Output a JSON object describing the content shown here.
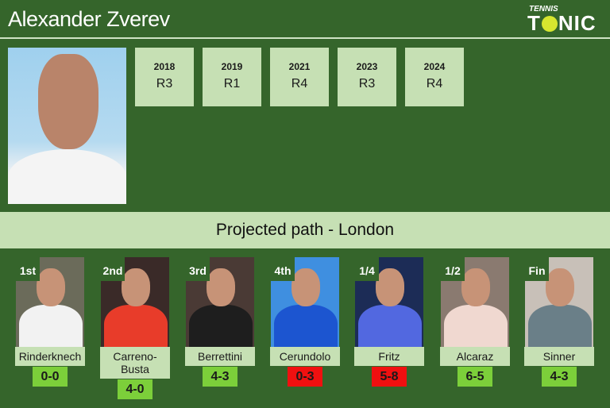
{
  "header": {
    "title": "Alexander Zverev",
    "logo_top": "TENNIS",
    "logo_main": "TONIC"
  },
  "history": [
    {
      "year": "2018",
      "result": "R3"
    },
    {
      "year": "2019",
      "result": "R1"
    },
    {
      "year": "2021",
      "result": "R4"
    },
    {
      "year": "2023",
      "result": "R3"
    },
    {
      "year": "2024",
      "result": "R4"
    }
  ],
  "banner": "Projected path - London",
  "colors": {
    "background": "#35652b",
    "panel": "#c6e0b4",
    "win": "#7ccf3a",
    "loss": "#f01010"
  },
  "path": [
    {
      "round": "1st",
      "name": "Rinderknech",
      "score": "0-0",
      "status": "win",
      "photo_bg": "#6b6b5a",
      "shirt": "#f2f2f2"
    },
    {
      "round": "2nd",
      "name": "Carreno-Busta",
      "score": "4-0",
      "status": "win",
      "photo_bg": "#3a2a28",
      "shirt": "#e83c2a"
    },
    {
      "round": "3rd",
      "name": "Berrettini",
      "score": "4-3",
      "status": "win",
      "photo_bg": "#4a3a35",
      "shirt": "#1e1e1e"
    },
    {
      "round": "4th",
      "name": "Cerundolo",
      "score": "0-3",
      "status": "loss",
      "photo_bg": "#3f8fe0",
      "shirt": "#1c55d0"
    },
    {
      "round": "1/4",
      "name": "Fritz",
      "score": "5-8",
      "status": "loss",
      "photo_bg": "#1c2c56",
      "shirt": "#5268e0"
    },
    {
      "round": "1/2",
      "name": "Alcaraz",
      "score": "6-5",
      "status": "win",
      "photo_bg": "#8a7a70",
      "shirt": "#f0d8d0"
    },
    {
      "round": "Fin",
      "name": "Sinner",
      "score": "4-3",
      "status": "win",
      "photo_bg": "#c8c0b8",
      "shirt": "#6a7f88"
    }
  ]
}
